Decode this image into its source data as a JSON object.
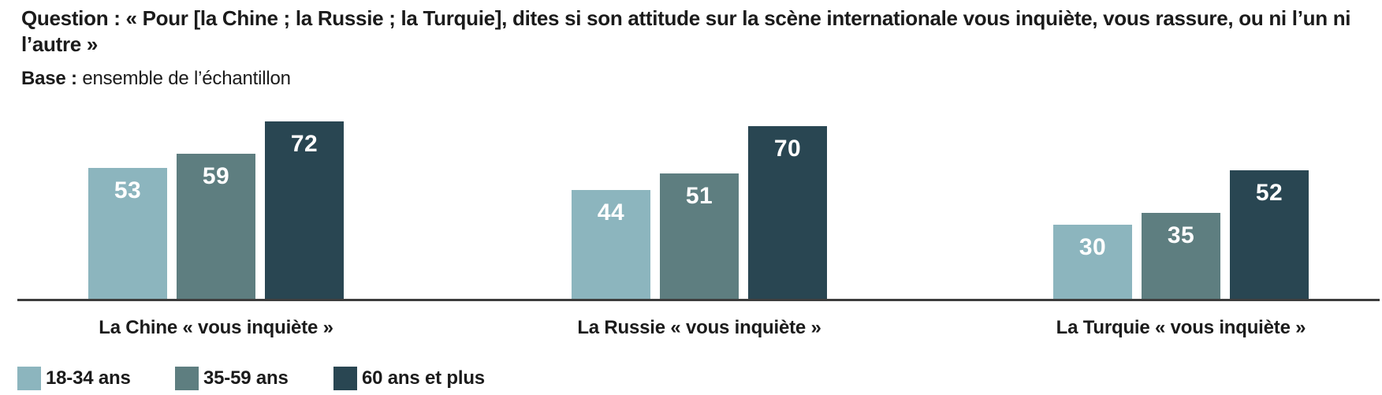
{
  "header": {
    "question_label": "Question :",
    "question_text": "« Pour [la Chine ; la Russie ; la Turquie], dites si son attitude sur la scène internationale vous inquiète, vous rassure, ou ni l’un ni l’autre »",
    "base_label": "Base :",
    "base_text": "ensemble de l’échantillon"
  },
  "chart_data": {
    "type": "bar",
    "title": "Question : « Pour [la Chine ; la Russie ; la Turquie], dites si son attitude sur la scène internationale vous inquiète, vous rassure, ou ni l’un ni l’autre »",
    "subtitle": "Base : ensemble de l’échantillon",
    "categories": [
      "La Chine « vous inquiète »",
      "La Russie « vous inquiète »",
      "La Turquie « vous inquiète »"
    ],
    "series": [
      {
        "name": "18-34 ans",
        "color": "#8CB5BE",
        "values": [
          53,
          44,
          30
        ]
      },
      {
        "name": "35-59 ans",
        "color": "#5E7E80",
        "values": [
          59,
          51,
          35
        ]
      },
      {
        "name": "60 ans et plus",
        "color": "#294652",
        "values": [
          72,
          70,
          52
        ]
      }
    ],
    "xlabel": "",
    "ylabel": "",
    "ylim": [
      0,
      84
    ],
    "grid": false,
    "value_labels": "inside-top-white",
    "legend_position": "bottom-left",
    "axis_line_color": "#3d3d3d",
    "value_unit": "%"
  }
}
